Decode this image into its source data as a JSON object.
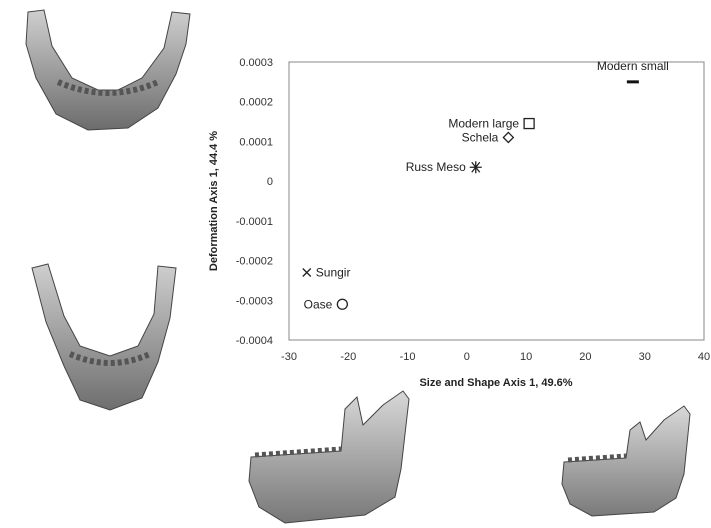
{
  "chart_data": {
    "type": "scatter",
    "xlabel": "Size and Shape Axis 1, 49.6%",
    "ylabel": "Deformation Axis 1, 44.4 %",
    "xlim": [
      -30,
      40
    ],
    "ylim": [
      -0.0004,
      0.0003
    ],
    "xticks": [
      "-30",
      "-20",
      "-10",
      "0",
      "10",
      "20",
      "30",
      "40"
    ],
    "yticks": [
      "0.0003",
      "0.0002",
      "0.0001",
      "0",
      "-0.0001",
      "-0.0002",
      "-0.0003",
      "-0.0004"
    ],
    "points": [
      {
        "label": "Modern small",
        "x": 28,
        "y": 0.00025,
        "marker": "dash"
      },
      {
        "label": "Modern large",
        "x": 10.5,
        "y": 0.000145,
        "marker": "square"
      },
      {
        "label": "Schela",
        "x": 7,
        "y": 0.00011,
        "marker": "diamond"
      },
      {
        "label": "Russ Meso",
        "x": 1.5,
        "y": 3.5e-05,
        "marker": "asterisk"
      },
      {
        "label": "Sungir",
        "x": -27,
        "y": -0.00023,
        "marker": "x"
      },
      {
        "label": "Oase",
        "x": -21,
        "y": -0.00031,
        "marker": "circle"
      }
    ],
    "grid": false,
    "legend": "none"
  },
  "shape_colors": {
    "bone_light": "#d9d9d9",
    "bone_mid": "#a8a8a8",
    "bone_dark": "#5e5e5e"
  }
}
